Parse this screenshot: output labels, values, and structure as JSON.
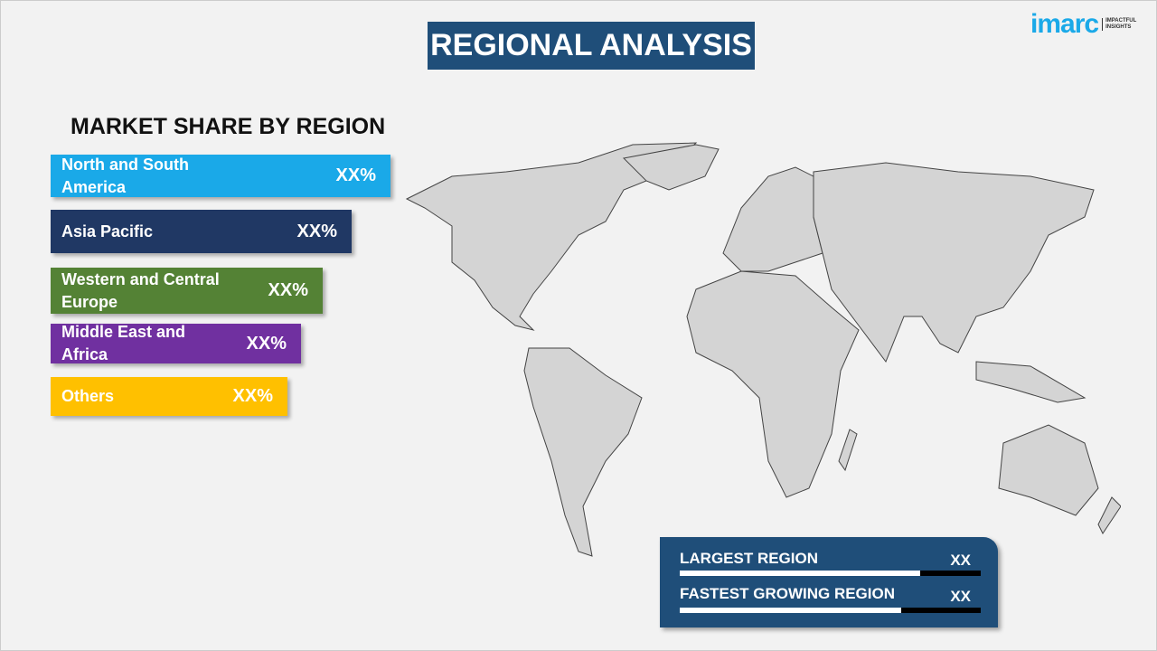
{
  "title": "REGIONAL ANALYSIS",
  "logo": {
    "brand": "imarc",
    "tagline_1": "IMPACTFUL",
    "tagline_2": "INSIGHTS"
  },
  "subtitle": "MARKET SHARE BY REGION",
  "regions": [
    {
      "label": "North and South America",
      "value": "XX%",
      "color": "#1aa9e8"
    },
    {
      "label": "Asia Pacific",
      "value": "XX%",
      "color": "#203864"
    },
    {
      "label": "Western and Central Europe",
      "value": "XX%",
      "color": "#548235"
    },
    {
      "label": "Middle East and Africa",
      "value": "XX%",
      "color": "#7030a0"
    },
    {
      "label": "Others",
      "value": "XX%",
      "color": "#ffc000"
    }
  ],
  "stats": [
    {
      "label": "LARGEST REGION",
      "value": "XX",
      "progress": 0.8
    },
    {
      "label": "FASTEST GROWING REGION",
      "value": "XX",
      "progress": 0.735
    }
  ]
}
